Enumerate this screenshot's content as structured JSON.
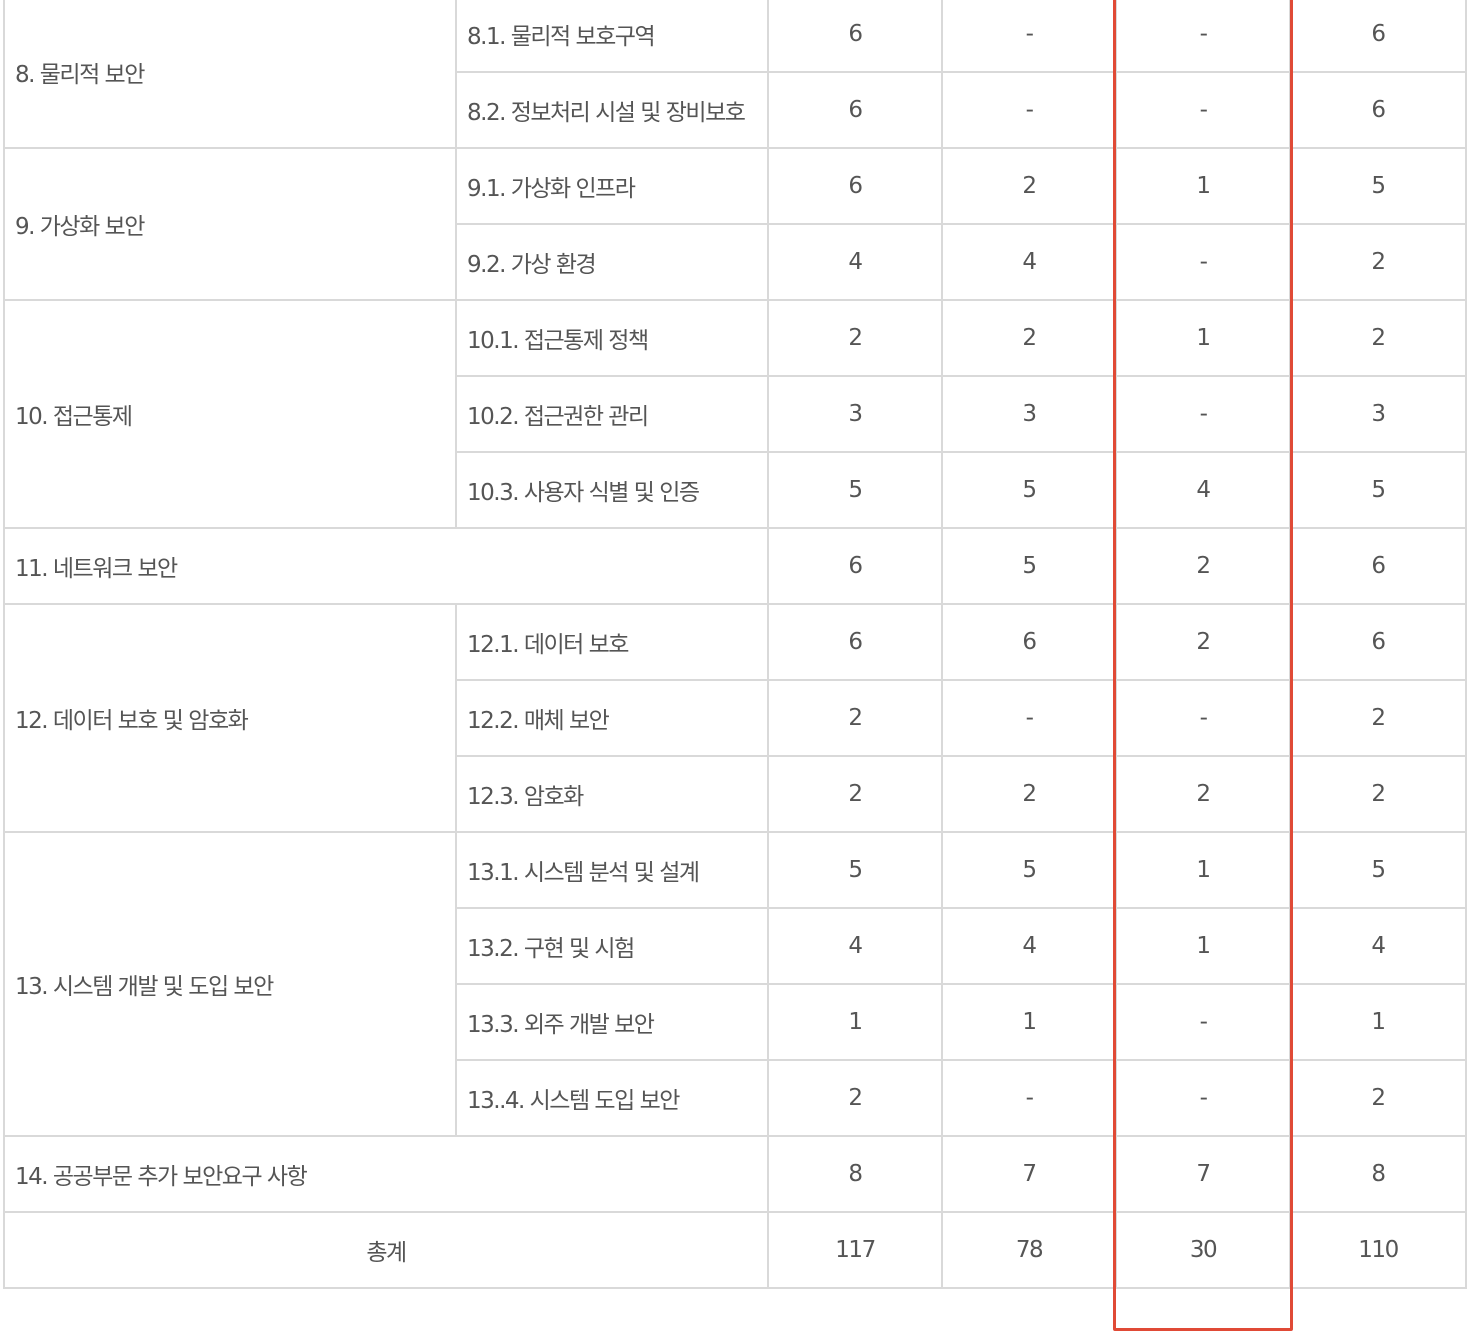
{
  "table": {
    "groups": [
      {
        "category": "8. 물리적 보안",
        "rows": [
          {
            "sub": "8.1. 물리적 보호구역",
            "v": [
              "6",
              "-",
              "-",
              "6"
            ]
          },
          {
            "sub": "8.2. 정보처리 시설 및 장비보호",
            "v": [
              "6",
              "-",
              "-",
              "6"
            ]
          }
        ]
      },
      {
        "category": "9. 가상화 보안",
        "rows": [
          {
            "sub": "9.1. 가상화 인프라",
            "v": [
              "6",
              "2",
              "1",
              "5"
            ]
          },
          {
            "sub": "9.2. 가상 환경",
            "v": [
              "4",
              "4",
              "-",
              "2"
            ]
          }
        ]
      },
      {
        "category": "10. 접근통제",
        "rows": [
          {
            "sub": "10.1. 접근통제 정책",
            "v": [
              "2",
              "2",
              "1",
              "2"
            ]
          },
          {
            "sub": "10.2. 접근권한 관리",
            "v": [
              "3",
              "3",
              "-",
              "3"
            ]
          },
          {
            "sub": "10.3. 사용자 식별 및 인증",
            "v": [
              "5",
              "5",
              "4",
              "5"
            ]
          }
        ]
      },
      {
        "category": "11. 네트워크 보안",
        "v": [
          "6",
          "5",
          "2",
          "6"
        ]
      },
      {
        "category": "12. 데이터 보호 및 암호화",
        "rows": [
          {
            "sub": "12.1. 데이터 보호",
            "v": [
              "6",
              "6",
              "2",
              "6"
            ]
          },
          {
            "sub": "12.2. 매체 보안",
            "v": [
              "2",
              "-",
              "-",
              "2"
            ]
          },
          {
            "sub": "12.3. 암호화",
            "v": [
              "2",
              "2",
              "2",
              "2"
            ]
          }
        ]
      },
      {
        "category": "13. 시스템 개발 및 도입 보안",
        "rows": [
          {
            "sub": "13.1. 시스템 분석 및 설계",
            "v": [
              "5",
              "5",
              "1",
              "5"
            ]
          },
          {
            "sub": "13.2. 구현 및 시험",
            "v": [
              "4",
              "4",
              "1",
              "4"
            ]
          },
          {
            "sub": "13.3. 외주 개발 보안",
            "v": [
              "1",
              "1",
              "-",
              "1"
            ]
          },
          {
            "sub": "13..4. 시스템 도입 보안",
            "v": [
              "2",
              "-",
              "-",
              "2"
            ]
          }
        ]
      },
      {
        "category": "14. 공공부문 추가 보안요구 사항",
        "v": [
          "8",
          "7",
          "7",
          "8"
        ]
      }
    ],
    "total": {
      "label": "총계",
      "v": [
        "117",
        "78",
        "30",
        "110"
      ]
    }
  },
  "colors": {
    "border": "#d9d9d9",
    "text": "#555555",
    "highlight": "#e04a36"
  }
}
